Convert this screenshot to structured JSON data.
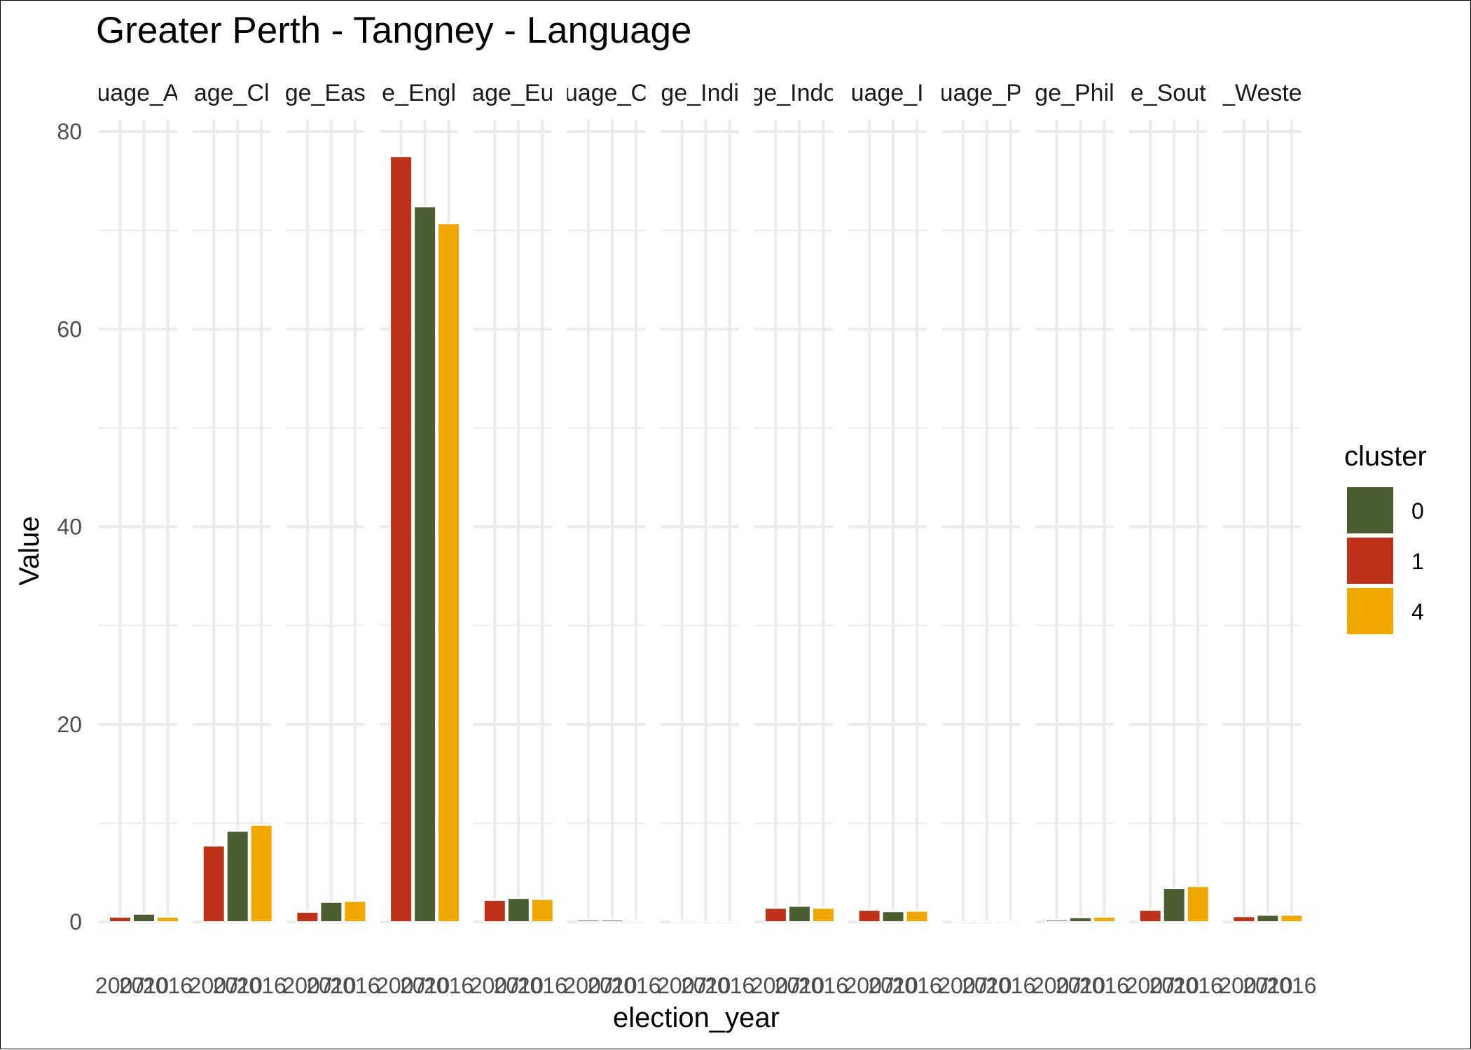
{
  "chart_data": {
    "type": "bar",
    "title": "Greater Perth - Tangney - Language",
    "xlabel": "election_year",
    "ylabel": "Value",
    "ylim": [
      0,
      80
    ],
    "y_ticks": [
      0,
      20,
      40,
      60,
      80
    ],
    "grid": true,
    "legend": {
      "title": "cluster",
      "position": "right",
      "entries": [
        {
          "label": "0",
          "color": "#4a5e32"
        },
        {
          "label": "1",
          "color": "#c0311a"
        },
        {
          "label": "4",
          "color": "#f0a800"
        }
      ]
    },
    "x_categories": [
      "2007",
      "2010",
      "2016"
    ],
    "x_tick_labels": [
      "2007",
      "2010",
      "2016"
    ],
    "bar_cluster_by_year": {
      "2007": "1",
      "2010": "0",
      "2016": "4"
    },
    "facets": [
      {
        "label": "uage_A",
        "values": [
          0.5,
          0.8,
          0.5
        ]
      },
      {
        "label": "age_Cl",
        "values": [
          7.7,
          9.2,
          9.8
        ]
      },
      {
        "label": "ge_Eas",
        "values": [
          1.0,
          2.0,
          2.1
        ]
      },
      {
        "label": "e_Engl",
        "values": [
          77.5,
          72.4,
          70.7
        ]
      },
      {
        "label": "age_Eu",
        "values": [
          2.2,
          2.4,
          2.3
        ]
      },
      {
        "label": "uage_C",
        "values": [
          0.2,
          0.2,
          0.15
        ]
      },
      {
        "label": "ge_Indi",
        "values": [
          0.1,
          0.05,
          0.05
        ]
      },
      {
        "label": "ge_Indo",
        "values": [
          1.4,
          1.6,
          1.4
        ]
      },
      {
        "label": "uage_I",
        "values": [
          1.2,
          1.05,
          1.1
        ]
      },
      {
        "label": "uage_P",
        "values": [
          0.05,
          0.05,
          0.05
        ]
      },
      {
        "label": "ge_Phil",
        "values": [
          0.2,
          0.45,
          0.5
        ]
      },
      {
        "label": "e_Sout",
        "values": [
          1.2,
          3.4,
          3.6
        ]
      },
      {
        "label": "_Weste",
        "values": [
          0.55,
          0.7,
          0.7
        ]
      }
    ]
  }
}
